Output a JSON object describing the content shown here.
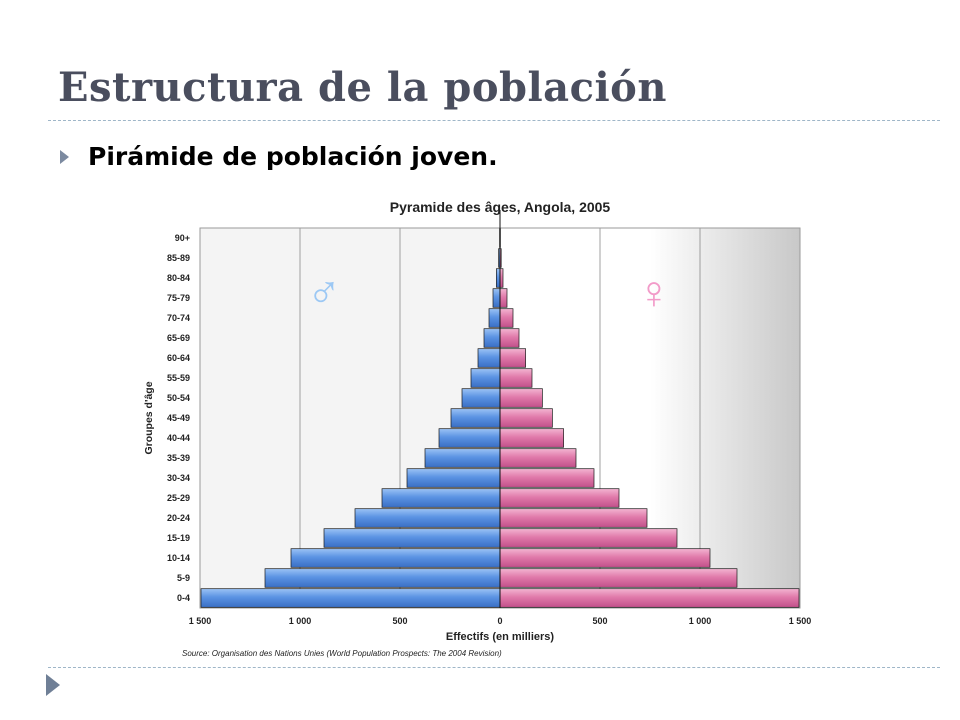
{
  "slide": {
    "title": "Estructura de la población",
    "bullet": "Pirámide de población joven."
  },
  "colors": {
    "male": "#5b93e3",
    "female": "#e07aaa",
    "male_symbol": "#9cc8f4",
    "female_symbol": "#f29bc9",
    "title_text": "#4a4e5e"
  },
  "icons": {
    "bullet": "right-triangle-icon",
    "corner": "right-triangle-icon"
  },
  "chart_data": {
    "type": "bar",
    "orientation": "horizontal-population-pyramid",
    "title": "Pyramide des âges, Angola, 2005",
    "xlabel": "Effectifs (en milliers)",
    "ylabel": "Groupes d'âge",
    "source": "Source: Organisation des Nations Unies (World Population Prospects: The 2004 Revision)",
    "male_symbol": "♂",
    "female_symbol": "♀",
    "xlim": [
      -1500,
      1500
    ],
    "x_ticks": [
      -1500,
      -1000,
      -500,
      0,
      500,
      1000,
      1500
    ],
    "x_tick_labels": [
      "1 500",
      "1 000",
      "500",
      "0",
      "500",
      "1 000",
      "1 500"
    ],
    "grid": true,
    "categories": [
      "0-4",
      "5-9",
      "10-14",
      "15-19",
      "20-24",
      "25-29",
      "30-34",
      "35-39",
      "40-44",
      "45-49",
      "50-54",
      "55-59",
      "60-64",
      "65-69",
      "70-74",
      "75-79",
      "80-84",
      "85-89",
      "90+"
    ],
    "series": [
      {
        "gender": "male",
        "values": [
          1495,
          1175,
          1045,
          880,
          725,
          590,
          465,
          375,
          305,
          245,
          190,
          145,
          110,
          80,
          55,
          35,
          18,
          7,
          2
        ]
      },
      {
        "gender": "female",
        "values": [
          1495,
          1185,
          1050,
          885,
          735,
          595,
          470,
          380,
          318,
          262,
          212,
          160,
          128,
          95,
          65,
          35,
          15,
          6,
          2
        ]
      }
    ]
  }
}
